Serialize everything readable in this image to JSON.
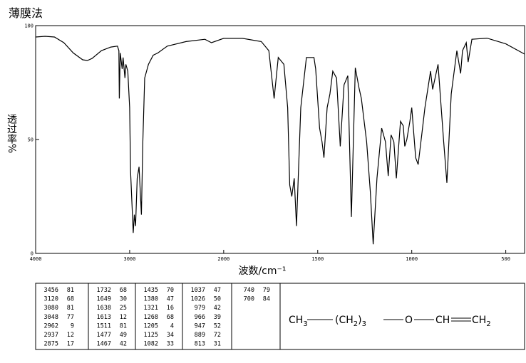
{
  "chart_data": {
    "type": "line",
    "title": "薄膜法",
    "xlabel": "波数/cm⁻¹",
    "ylabel": "透过率%",
    "color": "#000000",
    "xlim": [
      4000,
      400
    ],
    "xticks": [
      4000,
      3000,
      2000,
      1500,
      1000,
      500
    ],
    "x_scale_break": 2000,
    "ylim": [
      0,
      100
    ],
    "yticks": [
      0,
      50,
      100
    ],
    "x": [
      4000,
      3900,
      3800,
      3700,
      3600,
      3500,
      3450,
      3400,
      3300,
      3200,
      3130,
      3115,
      3110,
      3100,
      3080,
      3070,
      3050,
      3040,
      3020,
      3000,
      2990,
      2962,
      2950,
      2937,
      2920,
      2900,
      2875,
      2860,
      2840,
      2800,
      2750,
      2700,
      2600,
      2400,
      2200,
      2130,
      2000,
      1900,
      1800,
      1760,
      1732,
      1710,
      1680,
      1660,
      1649,
      1638,
      1625,
      1613,
      1590,
      1560,
      1520,
      1511,
      1490,
      1477,
      1467,
      1450,
      1435,
      1420,
      1400,
      1380,
      1360,
      1340,
      1321,
      1300,
      1280,
      1268,
      1240,
      1220,
      1205,
      1185,
      1160,
      1140,
      1125,
      1110,
      1095,
      1082,
      1060,
      1045,
      1037,
      1026,
      1010,
      1000,
      979,
      966,
      947,
      930,
      900,
      889,
      860,
      830,
      813,
      790,
      760,
      740,
      730,
      710,
      700,
      680,
      600,
      500,
      400
    ],
    "values": [
      95,
      95.3,
      95,
      92.5,
      88,
      85,
      84.7,
      85.6,
      89,
      90.6,
      91,
      89,
      68,
      88,
      81,
      86,
      77,
      83,
      80,
      64,
      36,
      9,
      17,
      12,
      33,
      38,
      17,
      49,
      77,
      83,
      87,
      88,
      91,
      93,
      94,
      92.5,
      94.4,
      94.4,
      93,
      89,
      68,
      86,
      83,
      64,
      30,
      25,
      33,
      12,
      64,
      86,
      86,
      81,
      55,
      49,
      42,
      64,
      70,
      80,
      77,
      47,
      74,
      78,
      16,
      81.5,
      72.5,
      68,
      49,
      27,
      4,
      33,
      55,
      49,
      34,
      52,
      49,
      33,
      58,
      56,
      47,
      50,
      58,
      64,
      42,
      39,
      52,
      64,
      80,
      72,
      83,
      49,
      31,
      70,
      89,
      79,
      89,
      92.5,
      84,
      94,
      94.5,
      92,
      87.5
    ]
  },
  "peaks": [
    [
      [
        "3456",
        "81"
      ],
      [
        "3120",
        "68"
      ],
      [
        "3080",
        "81"
      ],
      [
        "3048",
        "77"
      ],
      [
        "2962",
        "9"
      ],
      [
        "2937",
        "12"
      ],
      [
        "2875",
        "17"
      ]
    ],
    [
      [
        "1732",
        "68"
      ],
      [
        "1649",
        "30"
      ],
      [
        "1638",
        "25"
      ],
      [
        "1613",
        "12"
      ],
      [
        "1511",
        "81"
      ],
      [
        "1477",
        "49"
      ],
      [
        "1467",
        "42"
      ]
    ],
    [
      [
        "1435",
        "70"
      ],
      [
        "1380",
        "47"
      ],
      [
        "1321",
        "16"
      ],
      [
        "1268",
        "68"
      ],
      [
        "1205",
        "4"
      ],
      [
        "1125",
        "34"
      ],
      [
        "1082",
        "33"
      ]
    ],
    [
      [
        "1037",
        "47"
      ],
      [
        "1026",
        "50"
      ],
      [
        "979",
        "42"
      ],
      [
        "966",
        "39"
      ],
      [
        "947",
        "52"
      ],
      [
        "889",
        "72"
      ],
      [
        "813",
        "31"
      ]
    ],
    [
      [
        "740",
        "79"
      ],
      [
        "700",
        "84"
      ]
    ]
  ],
  "structure": [
    [
      "CH",
      "3"
    ],
    [
      "(CH",
      "2",
      ")",
      "3"
    ],
    [
      "O"
    ],
    [
      "CH"
    ],
    [
      "CH",
      "2"
    ]
  ]
}
